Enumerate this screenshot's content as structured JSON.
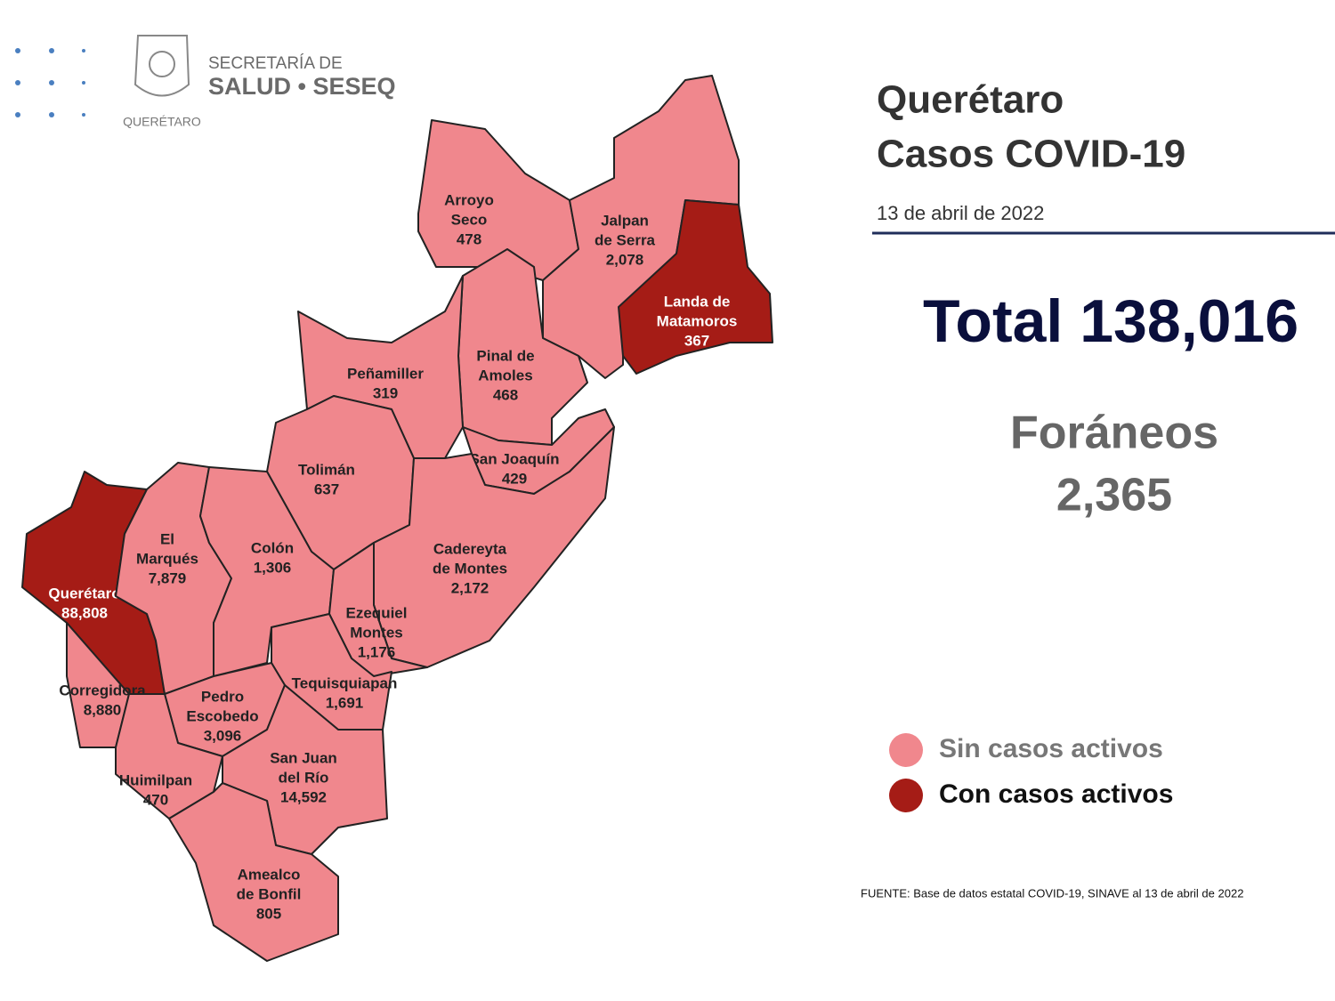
{
  "header": {
    "logo_lines": [
      "SECRETARÍA DE",
      "SALUD • SESEQ"
    ],
    "logo_seal_text": "QUERÉTARO"
  },
  "title_lines": [
    "Querétaro",
    "Casos COVID-19"
  ],
  "date": "13 de abril de 2022",
  "total": {
    "label": "Total",
    "value": "138,016"
  },
  "foraneos": {
    "label": "Foráneos",
    "value": "2,365"
  },
  "legend": [
    {
      "label": "Sin casos activos",
      "color": "#f0878d"
    },
    {
      "label": "Con casos activos",
      "color": "#a51c16"
    }
  ],
  "source": "FUENTE: Base de datos estatal COVID-19, SINAVE al 13 de abril de 2022",
  "municipalities": [
    {
      "name_lines": [
        "Arroyo",
        "Seco"
      ],
      "cases": "478",
      "active": false
    },
    {
      "name_lines": [
        "Jalpan",
        "de Serra"
      ],
      "cases": "2,078",
      "active": false
    },
    {
      "name_lines": [
        "Landa de",
        "Matamoros"
      ],
      "cases": "367",
      "active": true
    },
    {
      "name_lines": [
        "Pinal de",
        "Amoles"
      ],
      "cases": "468",
      "active": false
    },
    {
      "name_lines": [
        "Peñamiller"
      ],
      "cases": "319",
      "active": false
    },
    {
      "name_lines": [
        "San Joaquín"
      ],
      "cases": "429",
      "active": false
    },
    {
      "name_lines": [
        "Tolimán"
      ],
      "cases": "637",
      "active": false
    },
    {
      "name_lines": [
        "Cadereyta",
        "de Montes"
      ],
      "cases": "2,172",
      "active": false
    },
    {
      "name_lines": [
        "Querétaro"
      ],
      "cases": "88,808",
      "active": true
    },
    {
      "name_lines": [
        "El",
        "Marqués"
      ],
      "cases": "7,879",
      "active": false
    },
    {
      "name_lines": [
        "Colón"
      ],
      "cases": "1,306",
      "active": false
    },
    {
      "name_lines": [
        "Ezequiel",
        "Montes"
      ],
      "cases": "1,176",
      "active": false
    },
    {
      "name_lines": [
        "Tequisquiapan"
      ],
      "cases": "1,691",
      "active": false
    },
    {
      "name_lines": [
        "Corregidora"
      ],
      "cases": "8,880",
      "active": false
    },
    {
      "name_lines": [
        "Pedro",
        "Escobedo"
      ],
      "cases": "3,096",
      "active": false
    },
    {
      "name_lines": [
        "Huimilpan"
      ],
      "cases": "470",
      "active": false
    },
    {
      "name_lines": [
        "San Juan",
        "del Río"
      ],
      "cases": "14,592",
      "active": false
    },
    {
      "name_lines": [
        "Amealco",
        "de Bonfil"
      ],
      "cases": "805",
      "active": false
    }
  ]
}
